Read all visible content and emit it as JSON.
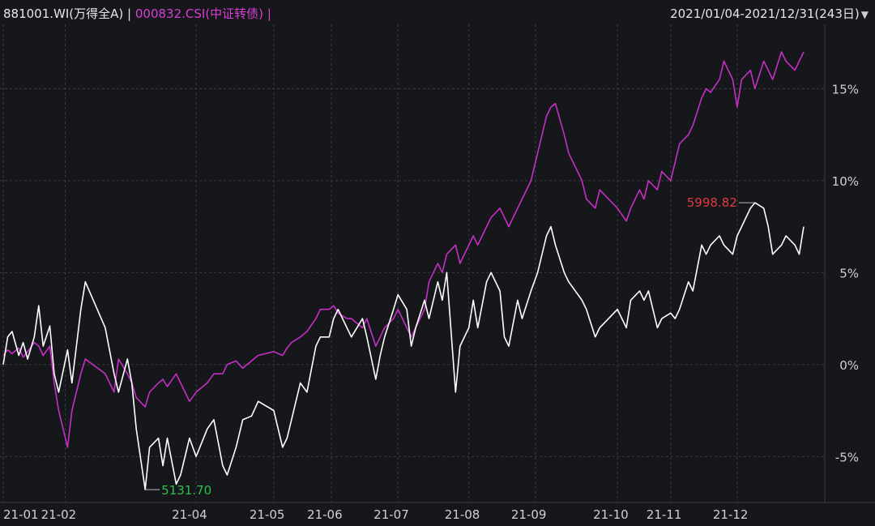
{
  "header": {
    "series_a_label": "881001.WI(万得全A)",
    "separator": "|",
    "series_b_label": "000832.CSI(中证转债)",
    "range_label": "2021/01/04-2021/12/31(243日)",
    "range_arrow_icon": "triangle-down-icon"
  },
  "chart_data": {
    "type": "line",
    "x_range": [
      "2021-01-04",
      "2021-12-31"
    ],
    "ylabel": "",
    "ylim": [
      -7.5,
      18.5
    ],
    "y_ticks": [
      15,
      10,
      5,
      0,
      -5
    ],
    "y_tick_labels": [
      "15%",
      "10%",
      "5%",
      "0%",
      "-5%"
    ],
    "x_tick_labels": [
      "21-01",
      "21-02",
      "21-04",
      "21-05",
      "21-06",
      "21-07",
      "21-08",
      "21-09",
      "21-10",
      "21-11",
      "21-12"
    ],
    "x_tick_dates": [
      "2021-01-04",
      "2021-02-01",
      "2021-04-01",
      "2021-05-06",
      "2021-06-01",
      "2021-07-01",
      "2021-08-02",
      "2021-09-01",
      "2021-10-08",
      "2021-11-01",
      "2021-12-01"
    ],
    "grid": true,
    "series": [
      {
        "name": "881001.WI(万得全A)",
        "color": "#ffffff",
        "points": [
          [
            "2021-01-04",
            0.0
          ],
          [
            "2021-01-06",
            1.5
          ],
          [
            "2021-01-08",
            1.8
          ],
          [
            "2021-01-11",
            0.5
          ],
          [
            "2021-01-13",
            1.2
          ],
          [
            "2021-01-15",
            0.3
          ],
          [
            "2021-01-18",
            1.5
          ],
          [
            "2021-01-20",
            3.2
          ],
          [
            "2021-01-22",
            1.0
          ],
          [
            "2021-01-25",
            2.1
          ],
          [
            "2021-01-27",
            -0.5
          ],
          [
            "2021-01-29",
            -1.5
          ],
          [
            "2021-02-02",
            0.8
          ],
          [
            "2021-02-04",
            -1.0
          ],
          [
            "2021-02-08",
            3.0
          ],
          [
            "2021-02-10",
            4.5
          ],
          [
            "2021-02-19",
            2.0
          ],
          [
            "2021-02-23",
            -0.5
          ],
          [
            "2021-02-25",
            -1.5
          ],
          [
            "2021-03-01",
            0.3
          ],
          [
            "2021-03-03",
            -1.0
          ],
          [
            "2021-03-05",
            -3.5
          ],
          [
            "2021-03-09",
            -6.8
          ],
          [
            "2021-03-11",
            -4.5
          ],
          [
            "2021-03-15",
            -4.0
          ],
          [
            "2021-03-17",
            -5.5
          ],
          [
            "2021-03-19",
            -4.0
          ],
          [
            "2021-03-23",
            -6.5
          ],
          [
            "2021-03-25",
            -6.0
          ],
          [
            "2021-03-29",
            -4.0
          ],
          [
            "2021-04-01",
            -5.0
          ],
          [
            "2021-04-06",
            -3.5
          ],
          [
            "2021-04-09",
            -3.0
          ],
          [
            "2021-04-13",
            -5.5
          ],
          [
            "2021-04-15",
            -6.0
          ],
          [
            "2021-04-19",
            -4.5
          ],
          [
            "2021-04-22",
            -3.0
          ],
          [
            "2021-04-26",
            -2.8
          ],
          [
            "2021-04-29",
            -2.0
          ],
          [
            "2021-05-06",
            -2.5
          ],
          [
            "2021-05-10",
            -4.5
          ],
          [
            "2021-05-12",
            -4.0
          ],
          [
            "2021-05-14",
            -3.0
          ],
          [
            "2021-05-18",
            -1.0
          ],
          [
            "2021-05-21",
            -1.5
          ],
          [
            "2021-05-25",
            1.0
          ],
          [
            "2021-05-27",
            1.5
          ],
          [
            "2021-05-31",
            1.5
          ],
          [
            "2021-06-02",
            2.5
          ],
          [
            "2021-06-04",
            3.0
          ],
          [
            "2021-06-08",
            2.0
          ],
          [
            "2021-06-10",
            1.5
          ],
          [
            "2021-06-15",
            2.5
          ],
          [
            "2021-06-17",
            1.5
          ],
          [
            "2021-06-21",
            -0.8
          ],
          [
            "2021-06-23",
            0.5
          ],
          [
            "2021-06-25",
            1.5
          ],
          [
            "2021-06-29",
            3.0
          ],
          [
            "2021-07-01",
            3.8
          ],
          [
            "2021-07-05",
            3.0
          ],
          [
            "2021-07-07",
            1.0
          ],
          [
            "2021-07-09",
            2.0
          ],
          [
            "2021-07-13",
            3.5
          ],
          [
            "2021-07-15",
            2.5
          ],
          [
            "2021-07-19",
            4.5
          ],
          [
            "2021-07-21",
            3.5
          ],
          [
            "2021-07-23",
            5.0
          ],
          [
            "2021-07-27",
            -1.5
          ],
          [
            "2021-07-29",
            1.0
          ],
          [
            "2021-08-02",
            2.0
          ],
          [
            "2021-08-04",
            3.5
          ],
          [
            "2021-08-06",
            2.0
          ],
          [
            "2021-08-10",
            4.5
          ],
          [
            "2021-08-12",
            5.0
          ],
          [
            "2021-08-16",
            4.0
          ],
          [
            "2021-08-18",
            1.5
          ],
          [
            "2021-08-20",
            1.0
          ],
          [
            "2021-08-24",
            3.5
          ],
          [
            "2021-08-26",
            2.5
          ],
          [
            "2021-08-30",
            4.0
          ],
          [
            "2021-09-02",
            5.0
          ],
          [
            "2021-09-06",
            7.0
          ],
          [
            "2021-09-08",
            7.5
          ],
          [
            "2021-09-10",
            6.5
          ],
          [
            "2021-09-14",
            5.0
          ],
          [
            "2021-09-16",
            4.5
          ],
          [
            "2021-09-22",
            3.5
          ],
          [
            "2021-09-24",
            3.0
          ],
          [
            "2021-09-28",
            1.5
          ],
          [
            "2021-09-30",
            2.0
          ],
          [
            "2021-10-08",
            3.0
          ],
          [
            "2021-10-12",
            2.0
          ],
          [
            "2021-10-14",
            3.5
          ],
          [
            "2021-10-18",
            4.0
          ],
          [
            "2021-10-20",
            3.5
          ],
          [
            "2021-10-22",
            4.0
          ],
          [
            "2021-10-26",
            2.0
          ],
          [
            "2021-10-28",
            2.5
          ],
          [
            "2021-11-01",
            2.8
          ],
          [
            "2021-11-03",
            2.5
          ],
          [
            "2021-11-05",
            3.0
          ],
          [
            "2021-11-09",
            4.5
          ],
          [
            "2021-11-11",
            4.0
          ],
          [
            "2021-11-15",
            6.5
          ],
          [
            "2021-11-17",
            6.0
          ],
          [
            "2021-11-19",
            6.5
          ],
          [
            "2021-11-23",
            7.0
          ],
          [
            "2021-11-25",
            6.5
          ],
          [
            "2021-11-29",
            6.0
          ],
          [
            "2021-12-01",
            7.0
          ],
          [
            "2021-12-03",
            7.5
          ],
          [
            "2021-12-07",
            8.5
          ],
          [
            "2021-12-09",
            8.8
          ],
          [
            "2021-12-13",
            8.5
          ],
          [
            "2021-12-15",
            7.5
          ],
          [
            "2021-12-17",
            6.0
          ],
          [
            "2021-12-21",
            6.5
          ],
          [
            "2021-12-23",
            7.0
          ],
          [
            "2021-12-27",
            6.5
          ],
          [
            "2021-12-29",
            6.0
          ],
          [
            "2021-12-31",
            7.5
          ]
        ],
        "max_label": "5998.82",
        "max_date": "2021-12-09",
        "max_value": 8.8,
        "min_label": "5131.70",
        "min_date": "2021-03-09",
        "min_value": -6.8
      },
      {
        "name": "000832.CSI(中证转债)",
        "color": "#c62fc6",
        "points": [
          [
            "2021-01-04",
            0.5
          ],
          [
            "2021-01-06",
            0.8
          ],
          [
            "2021-01-08",
            0.6
          ],
          [
            "2021-01-11",
            0.9
          ],
          [
            "2021-01-13",
            0.4
          ],
          [
            "2021-01-15",
            0.7
          ],
          [
            "2021-01-18",
            1.2
          ],
          [
            "2021-01-20",
            1.0
          ],
          [
            "2021-01-22",
            0.5
          ],
          [
            "2021-01-25",
            1.0
          ],
          [
            "2021-01-27",
            -1.0
          ],
          [
            "2021-01-29",
            -2.5
          ],
          [
            "2021-02-02",
            -4.5
          ],
          [
            "2021-02-04",
            -2.5
          ],
          [
            "2021-02-08",
            -0.5
          ],
          [
            "2021-02-10",
            0.3
          ],
          [
            "2021-02-19",
            -0.5
          ],
          [
            "2021-02-23",
            -1.5
          ],
          [
            "2021-02-25",
            0.3
          ],
          [
            "2021-03-01",
            -0.5
          ],
          [
            "2021-03-03",
            -1.0
          ],
          [
            "2021-03-05",
            -1.8
          ],
          [
            "2021-03-09",
            -2.3
          ],
          [
            "2021-03-11",
            -1.5
          ],
          [
            "2021-03-15",
            -1.0
          ],
          [
            "2021-03-17",
            -0.8
          ],
          [
            "2021-03-19",
            -1.2
          ],
          [
            "2021-03-23",
            -0.5
          ],
          [
            "2021-03-25",
            -1.0
          ],
          [
            "2021-03-29",
            -2.0
          ],
          [
            "2021-04-01",
            -1.5
          ],
          [
            "2021-04-06",
            -1.0
          ],
          [
            "2021-04-09",
            -0.5
          ],
          [
            "2021-04-13",
            -0.5
          ],
          [
            "2021-04-15",
            0.0
          ],
          [
            "2021-04-19",
            0.2
          ],
          [
            "2021-04-22",
            -0.2
          ],
          [
            "2021-04-26",
            0.2
          ],
          [
            "2021-04-29",
            0.5
          ],
          [
            "2021-05-06",
            0.7
          ],
          [
            "2021-05-10",
            0.5
          ],
          [
            "2021-05-12",
            0.9
          ],
          [
            "2021-05-14",
            1.2
          ],
          [
            "2021-05-18",
            1.5
          ],
          [
            "2021-05-21",
            1.8
          ],
          [
            "2021-05-25",
            2.5
          ],
          [
            "2021-05-27",
            3.0
          ],
          [
            "2021-05-31",
            3.0
          ],
          [
            "2021-06-02",
            3.2
          ],
          [
            "2021-06-04",
            2.8
          ],
          [
            "2021-06-08",
            2.5
          ],
          [
            "2021-06-10",
            2.5
          ],
          [
            "2021-06-15",
            2.0
          ],
          [
            "2021-06-17",
            2.5
          ],
          [
            "2021-06-21",
            1.0
          ],
          [
            "2021-06-23",
            1.5
          ],
          [
            "2021-06-25",
            2.0
          ],
          [
            "2021-06-29",
            2.5
          ],
          [
            "2021-07-01",
            3.0
          ],
          [
            "2021-07-05",
            2.0
          ],
          [
            "2021-07-07",
            1.5
          ],
          [
            "2021-07-09",
            2.0
          ],
          [
            "2021-07-13",
            3.0
          ],
          [
            "2021-07-15",
            4.5
          ],
          [
            "2021-07-19",
            5.5
          ],
          [
            "2021-07-21",
            5.0
          ],
          [
            "2021-07-23",
            6.0
          ],
          [
            "2021-07-27",
            6.5
          ],
          [
            "2021-07-29",
            5.5
          ],
          [
            "2021-08-02",
            6.5
          ],
          [
            "2021-08-04",
            7.0
          ],
          [
            "2021-08-06",
            6.5
          ],
          [
            "2021-08-10",
            7.5
          ],
          [
            "2021-08-12",
            8.0
          ],
          [
            "2021-08-16",
            8.5
          ],
          [
            "2021-08-18",
            8.0
          ],
          [
            "2021-08-20",
            7.5
          ],
          [
            "2021-08-24",
            8.5
          ],
          [
            "2021-08-26",
            9.0
          ],
          [
            "2021-08-30",
            10.0
          ],
          [
            "2021-09-02",
            11.5
          ],
          [
            "2021-09-06",
            13.5
          ],
          [
            "2021-09-08",
            14.0
          ],
          [
            "2021-09-10",
            14.2
          ],
          [
            "2021-09-14",
            12.5
          ],
          [
            "2021-09-16",
            11.5
          ],
          [
            "2021-09-22",
            10.0
          ],
          [
            "2021-09-24",
            9.0
          ],
          [
            "2021-09-28",
            8.5
          ],
          [
            "2021-09-30",
            9.5
          ],
          [
            "2021-10-08",
            8.5
          ],
          [
            "2021-10-12",
            7.8
          ],
          [
            "2021-10-14",
            8.5
          ],
          [
            "2021-10-18",
            9.5
          ],
          [
            "2021-10-20",
            9.0
          ],
          [
            "2021-10-22",
            10.0
          ],
          [
            "2021-10-26",
            9.5
          ],
          [
            "2021-10-28",
            10.5
          ],
          [
            "2021-11-01",
            10.0
          ],
          [
            "2021-11-03",
            11.0
          ],
          [
            "2021-11-05",
            12.0
          ],
          [
            "2021-11-09",
            12.5
          ],
          [
            "2021-11-11",
            13.0
          ],
          [
            "2021-11-15",
            14.5
          ],
          [
            "2021-11-17",
            15.0
          ],
          [
            "2021-11-19",
            14.8
          ],
          [
            "2021-11-23",
            15.5
          ],
          [
            "2021-11-25",
            16.5
          ],
          [
            "2021-11-29",
            15.5
          ],
          [
            "2021-12-01",
            14.0
          ],
          [
            "2021-12-03",
            15.5
          ],
          [
            "2021-12-07",
            16.0
          ],
          [
            "2021-12-09",
            15.0
          ],
          [
            "2021-12-13",
            16.5
          ],
          [
            "2021-12-15",
            16.0
          ],
          [
            "2021-12-17",
            15.5
          ],
          [
            "2021-12-21",
            17.0
          ],
          [
            "2021-12-23",
            16.5
          ],
          [
            "2021-12-27",
            16.0
          ],
          [
            "2021-12-29",
            16.5
          ],
          [
            "2021-12-31",
            17.0
          ]
        ]
      }
    ]
  },
  "colors": {
    "background": "#16171b",
    "grid": "#3a3c42",
    "axis_text": "#d0d0d0",
    "max_label": "#e0393e",
    "min_label": "#2fbf4a"
  }
}
